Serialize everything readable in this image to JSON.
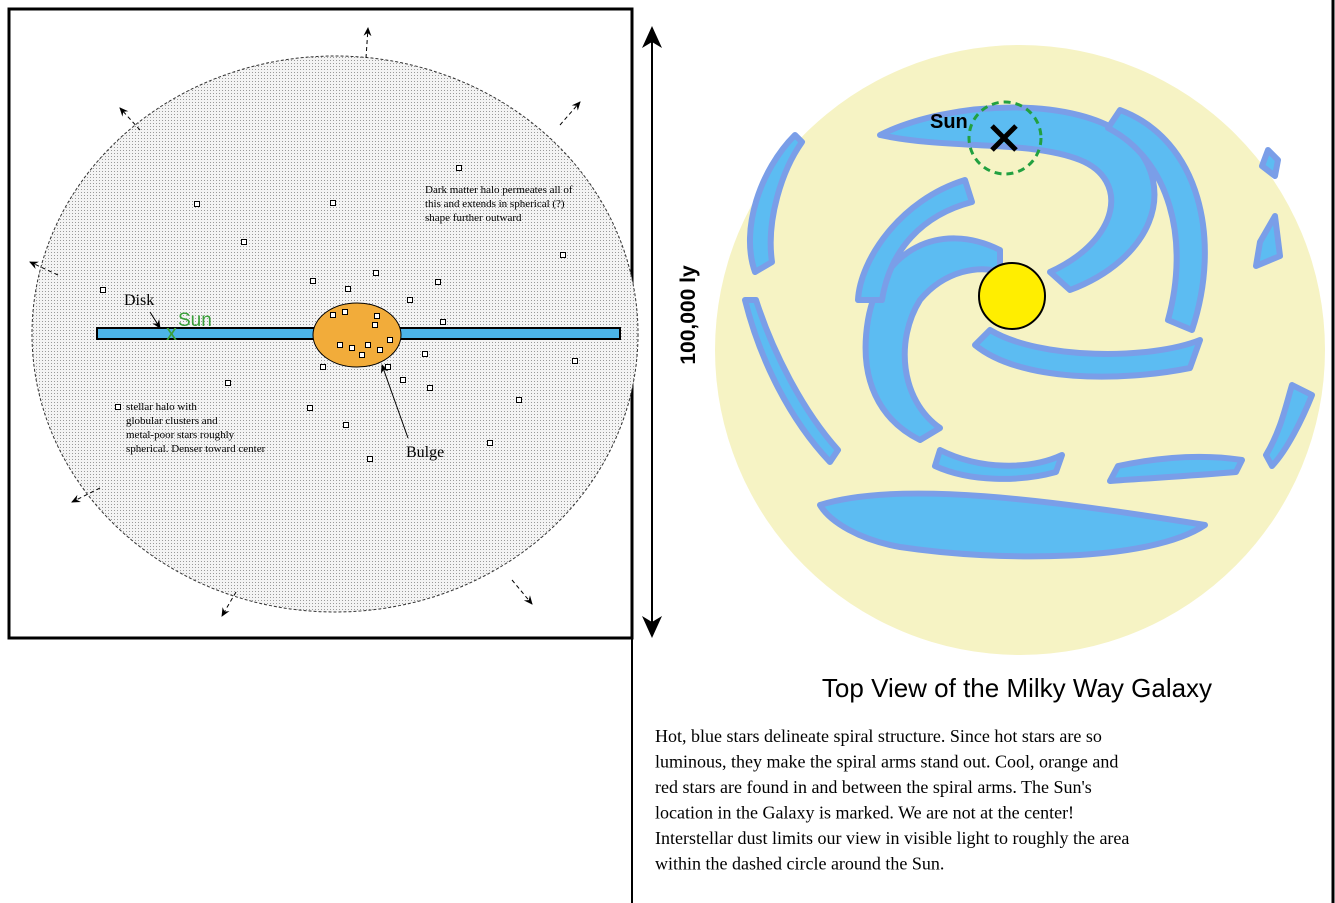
{
  "left_diagram": {
    "halo_note": [
      "Dark matter halo permeates all of",
      "this and extends in spherical (?)",
      "shape further outward"
    ],
    "disk_label": "Disk",
    "sun_label": "Sun",
    "stellar_halo_note": [
      "stellar halo with",
      "globular clusters and",
      "metal-poor stars roughly",
      "spherical. Denser toward center"
    ],
    "bulge_label": "Bulge"
  },
  "right_diagram": {
    "sun_label": "Sun",
    "scale_label": "100,000 ly",
    "title": "Top View of the Milky Way Galaxy",
    "description": [
      "Hot, blue stars delineate spiral structure. Since hot stars are so",
      "luminous, they make the spiral arms stand out. Cool,  orange and",
      "red stars are found in and between the spiral arms. The Sun's",
      "location in the Galaxy is marked. We are not at the center!",
      "Interstellar dust limits our view in visible light to roughly the area",
      "within the dashed circle around the Sun."
    ]
  }
}
